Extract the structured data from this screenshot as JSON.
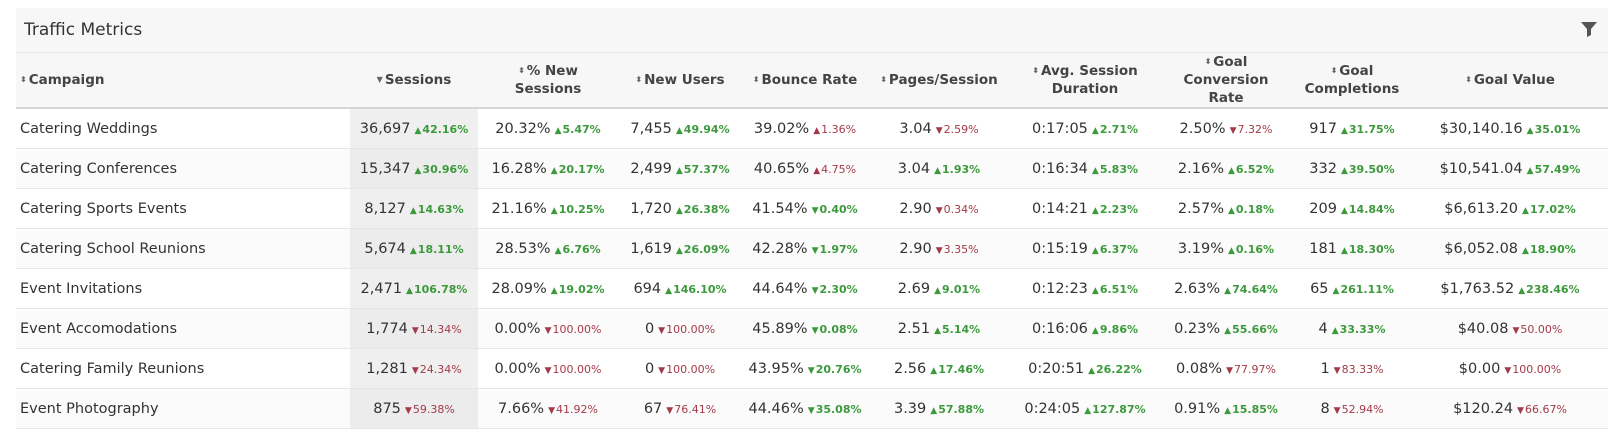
{
  "widget": {
    "title": "Traffic Metrics",
    "filter_icon": "filter-icon"
  },
  "columns": [
    {
      "label": "Campaign"
    },
    {
      "label": "Sessions",
      "sorted": "desc"
    },
    {
      "label": "% New Sessions"
    },
    {
      "label": "New Users"
    },
    {
      "label": "Bounce Rate"
    },
    {
      "label": "Pages/Session"
    },
    {
      "label": "Avg. Session Duration"
    },
    {
      "label": "Goal Conversion Rate"
    },
    {
      "label": "Goal Completions"
    },
    {
      "label": "Goal Value"
    }
  ],
  "rows": [
    {
      "campaign": "Catering Weddings",
      "cells": [
        {
          "value": "36,697",
          "change": "42.16%",
          "dir": "up"
        },
        {
          "value": "20.32%",
          "change": "5.47%",
          "dir": "up"
        },
        {
          "value": "7,455",
          "change": "49.94%",
          "dir": "up"
        },
        {
          "value": "39.02%",
          "change": "1.36%",
          "dir": "up",
          "bad": true
        },
        {
          "value": "3.04",
          "change": "2.59%",
          "dir": "down"
        },
        {
          "value": "0:17:05",
          "change": "2.71%",
          "dir": "up"
        },
        {
          "value": "2.50%",
          "change": "7.32%",
          "dir": "down"
        },
        {
          "value": "917",
          "change": "31.75%",
          "dir": "up"
        },
        {
          "value": "$30,140.16",
          "change": "35.01%",
          "dir": "up"
        }
      ]
    },
    {
      "campaign": "Catering Conferences",
      "cells": [
        {
          "value": "15,347",
          "change": "30.96%",
          "dir": "up"
        },
        {
          "value": "16.28%",
          "change": "20.17%",
          "dir": "up"
        },
        {
          "value": "2,499",
          "change": "57.37%",
          "dir": "up"
        },
        {
          "value": "40.65%",
          "change": "4.75%",
          "dir": "up",
          "bad": true
        },
        {
          "value": "3.04",
          "change": "1.93%",
          "dir": "up"
        },
        {
          "value": "0:16:34",
          "change": "5.83%",
          "dir": "up"
        },
        {
          "value": "2.16%",
          "change": "6.52%",
          "dir": "up"
        },
        {
          "value": "332",
          "change": "39.50%",
          "dir": "up"
        },
        {
          "value": "$10,541.04",
          "change": "57.49%",
          "dir": "up"
        }
      ]
    },
    {
      "campaign": "Catering Sports Events",
      "cells": [
        {
          "value": "8,127",
          "change": "14.63%",
          "dir": "up"
        },
        {
          "value": "21.16%",
          "change": "10.25%",
          "dir": "up"
        },
        {
          "value": "1,720",
          "change": "26.38%",
          "dir": "up"
        },
        {
          "value": "41.54%",
          "change": "0.40%",
          "dir": "down",
          "good": true
        },
        {
          "value": "2.90",
          "change": "0.34%",
          "dir": "down"
        },
        {
          "value": "0:14:21",
          "change": "2.23%",
          "dir": "up"
        },
        {
          "value": "2.57%",
          "change": "0.18%",
          "dir": "up"
        },
        {
          "value": "209",
          "change": "14.84%",
          "dir": "up"
        },
        {
          "value": "$6,613.20",
          "change": "17.02%",
          "dir": "up"
        }
      ]
    },
    {
      "campaign": "Catering School Reunions",
      "cells": [
        {
          "value": "5,674",
          "change": "18.11%",
          "dir": "up"
        },
        {
          "value": "28.53%",
          "change": "6.76%",
          "dir": "up"
        },
        {
          "value": "1,619",
          "change": "26.09%",
          "dir": "up"
        },
        {
          "value": "42.28%",
          "change": "1.97%",
          "dir": "down",
          "good": true
        },
        {
          "value": "2.90",
          "change": "3.35%",
          "dir": "down"
        },
        {
          "value": "0:15:19",
          "change": "6.37%",
          "dir": "up"
        },
        {
          "value": "3.19%",
          "change": "0.16%",
          "dir": "up"
        },
        {
          "value": "181",
          "change": "18.30%",
          "dir": "up"
        },
        {
          "value": "$6,052.08",
          "change": "18.90%",
          "dir": "up"
        }
      ]
    },
    {
      "campaign": "Event Invitations",
      "cells": [
        {
          "value": "2,471",
          "change": "106.78%",
          "dir": "up"
        },
        {
          "value": "28.09%",
          "change": "19.02%",
          "dir": "up"
        },
        {
          "value": "694",
          "change": "146.10%",
          "dir": "up"
        },
        {
          "value": "44.64%",
          "change": "2.30%",
          "dir": "down",
          "good": true
        },
        {
          "value": "2.69",
          "change": "9.01%",
          "dir": "up"
        },
        {
          "value": "0:12:23",
          "change": "6.51%",
          "dir": "up"
        },
        {
          "value": "2.63%",
          "change": "74.64%",
          "dir": "up"
        },
        {
          "value": "65",
          "change": "261.11%",
          "dir": "up"
        },
        {
          "value": "$1,763.52",
          "change": "238.46%",
          "dir": "up"
        }
      ]
    },
    {
      "campaign": "Event Accomodations",
      "cells": [
        {
          "value": "1,774",
          "change": "14.34%",
          "dir": "down"
        },
        {
          "value": "0.00%",
          "change": "100.00%",
          "dir": "down"
        },
        {
          "value": "0",
          "change": "100.00%",
          "dir": "down"
        },
        {
          "value": "45.89%",
          "change": "0.08%",
          "dir": "down",
          "good": true
        },
        {
          "value": "2.51",
          "change": "5.14%",
          "dir": "up"
        },
        {
          "value": "0:16:06",
          "change": "9.86%",
          "dir": "up"
        },
        {
          "value": "0.23%",
          "change": "55.66%",
          "dir": "up"
        },
        {
          "value": "4",
          "change": "33.33%",
          "dir": "up"
        },
        {
          "value": "$40.08",
          "change": "50.00%",
          "dir": "down"
        }
      ]
    },
    {
      "campaign": "Catering Family Reunions",
      "cells": [
        {
          "value": "1,281",
          "change": "24.34%",
          "dir": "down"
        },
        {
          "value": "0.00%",
          "change": "100.00%",
          "dir": "down"
        },
        {
          "value": "0",
          "change": "100.00%",
          "dir": "down"
        },
        {
          "value": "43.95%",
          "change": "20.76%",
          "dir": "down",
          "good": true
        },
        {
          "value": "2.56",
          "change": "17.46%",
          "dir": "up"
        },
        {
          "value": "0:20:51",
          "change": "26.22%",
          "dir": "up"
        },
        {
          "value": "0.08%",
          "change": "77.97%",
          "dir": "down"
        },
        {
          "value": "1",
          "change": "83.33%",
          "dir": "down"
        },
        {
          "value": "$0.00",
          "change": "100.00%",
          "dir": "down"
        }
      ]
    },
    {
      "campaign": "Event Photography",
      "cells": [
        {
          "value": "875",
          "change": "59.38%",
          "dir": "down"
        },
        {
          "value": "7.66%",
          "change": "41.92%",
          "dir": "down"
        },
        {
          "value": "67",
          "change": "76.41%",
          "dir": "down"
        },
        {
          "value": "44.46%",
          "change": "35.08%",
          "dir": "down",
          "good": true
        },
        {
          "value": "3.39",
          "change": "57.88%",
          "dir": "up"
        },
        {
          "value": "0:24:05",
          "change": "127.87%",
          "dir": "up"
        },
        {
          "value": "0.91%",
          "change": "15.85%",
          "dir": "up"
        },
        {
          "value": "8",
          "change": "52.94%",
          "dir": "down"
        },
        {
          "value": "$120.24",
          "change": "66.67%",
          "dir": "down"
        }
      ]
    }
  ]
}
